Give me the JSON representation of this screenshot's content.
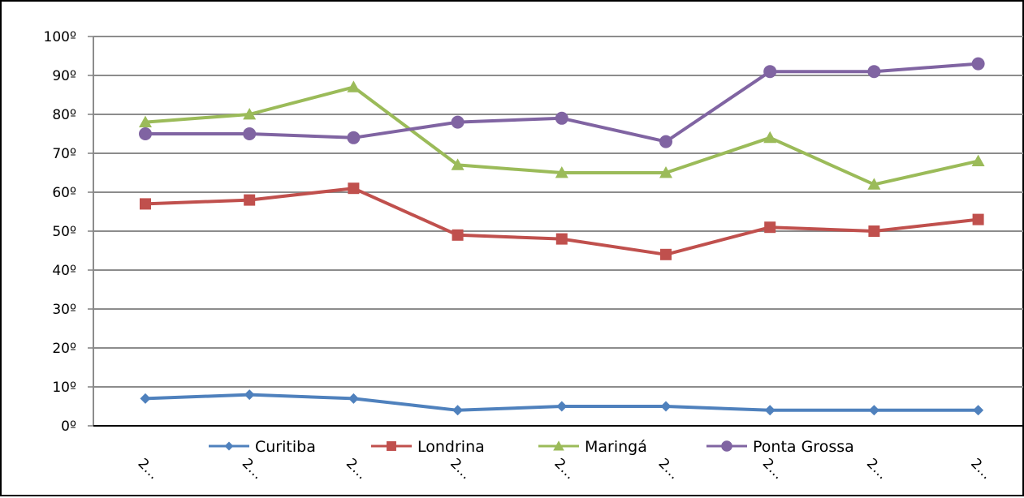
{
  "chart_data": {
    "type": "line",
    "x": [
      "2…",
      "2…",
      "2…",
      "2…",
      "2…",
      "2…",
      "2…",
      "2…",
      "2…"
    ],
    "y_ticks": [
      "0º",
      "10º",
      "20º",
      "30º",
      "40º",
      "50º",
      "60º",
      "70º",
      "80º",
      "90º",
      "100º"
    ],
    "ylim": [
      0,
      100
    ],
    "y_step": 10,
    "grid": true,
    "legend_position": "bottom",
    "series": [
      {
        "name": "Curitiba",
        "color": "#4F81BD",
        "marker": "diamond",
        "values": [
          7,
          8,
          7,
          4,
          5,
          5,
          4,
          4,
          4
        ]
      },
      {
        "name": "Londrina",
        "color": "#C0504D",
        "marker": "square",
        "values": [
          57,
          58,
          61,
          49,
          48,
          44,
          51,
          50,
          53
        ]
      },
      {
        "name": "Maringá",
        "color": "#9BBB59",
        "marker": "triangle",
        "values": [
          78,
          80,
          87,
          67,
          65,
          65,
          74,
          62,
          68
        ]
      },
      {
        "name": "Ponta Grossa",
        "color": "#8064A2",
        "marker": "circle",
        "values": [
          75,
          75,
          74,
          78,
          79,
          73,
          91,
          91,
          93
        ]
      }
    ]
  }
}
